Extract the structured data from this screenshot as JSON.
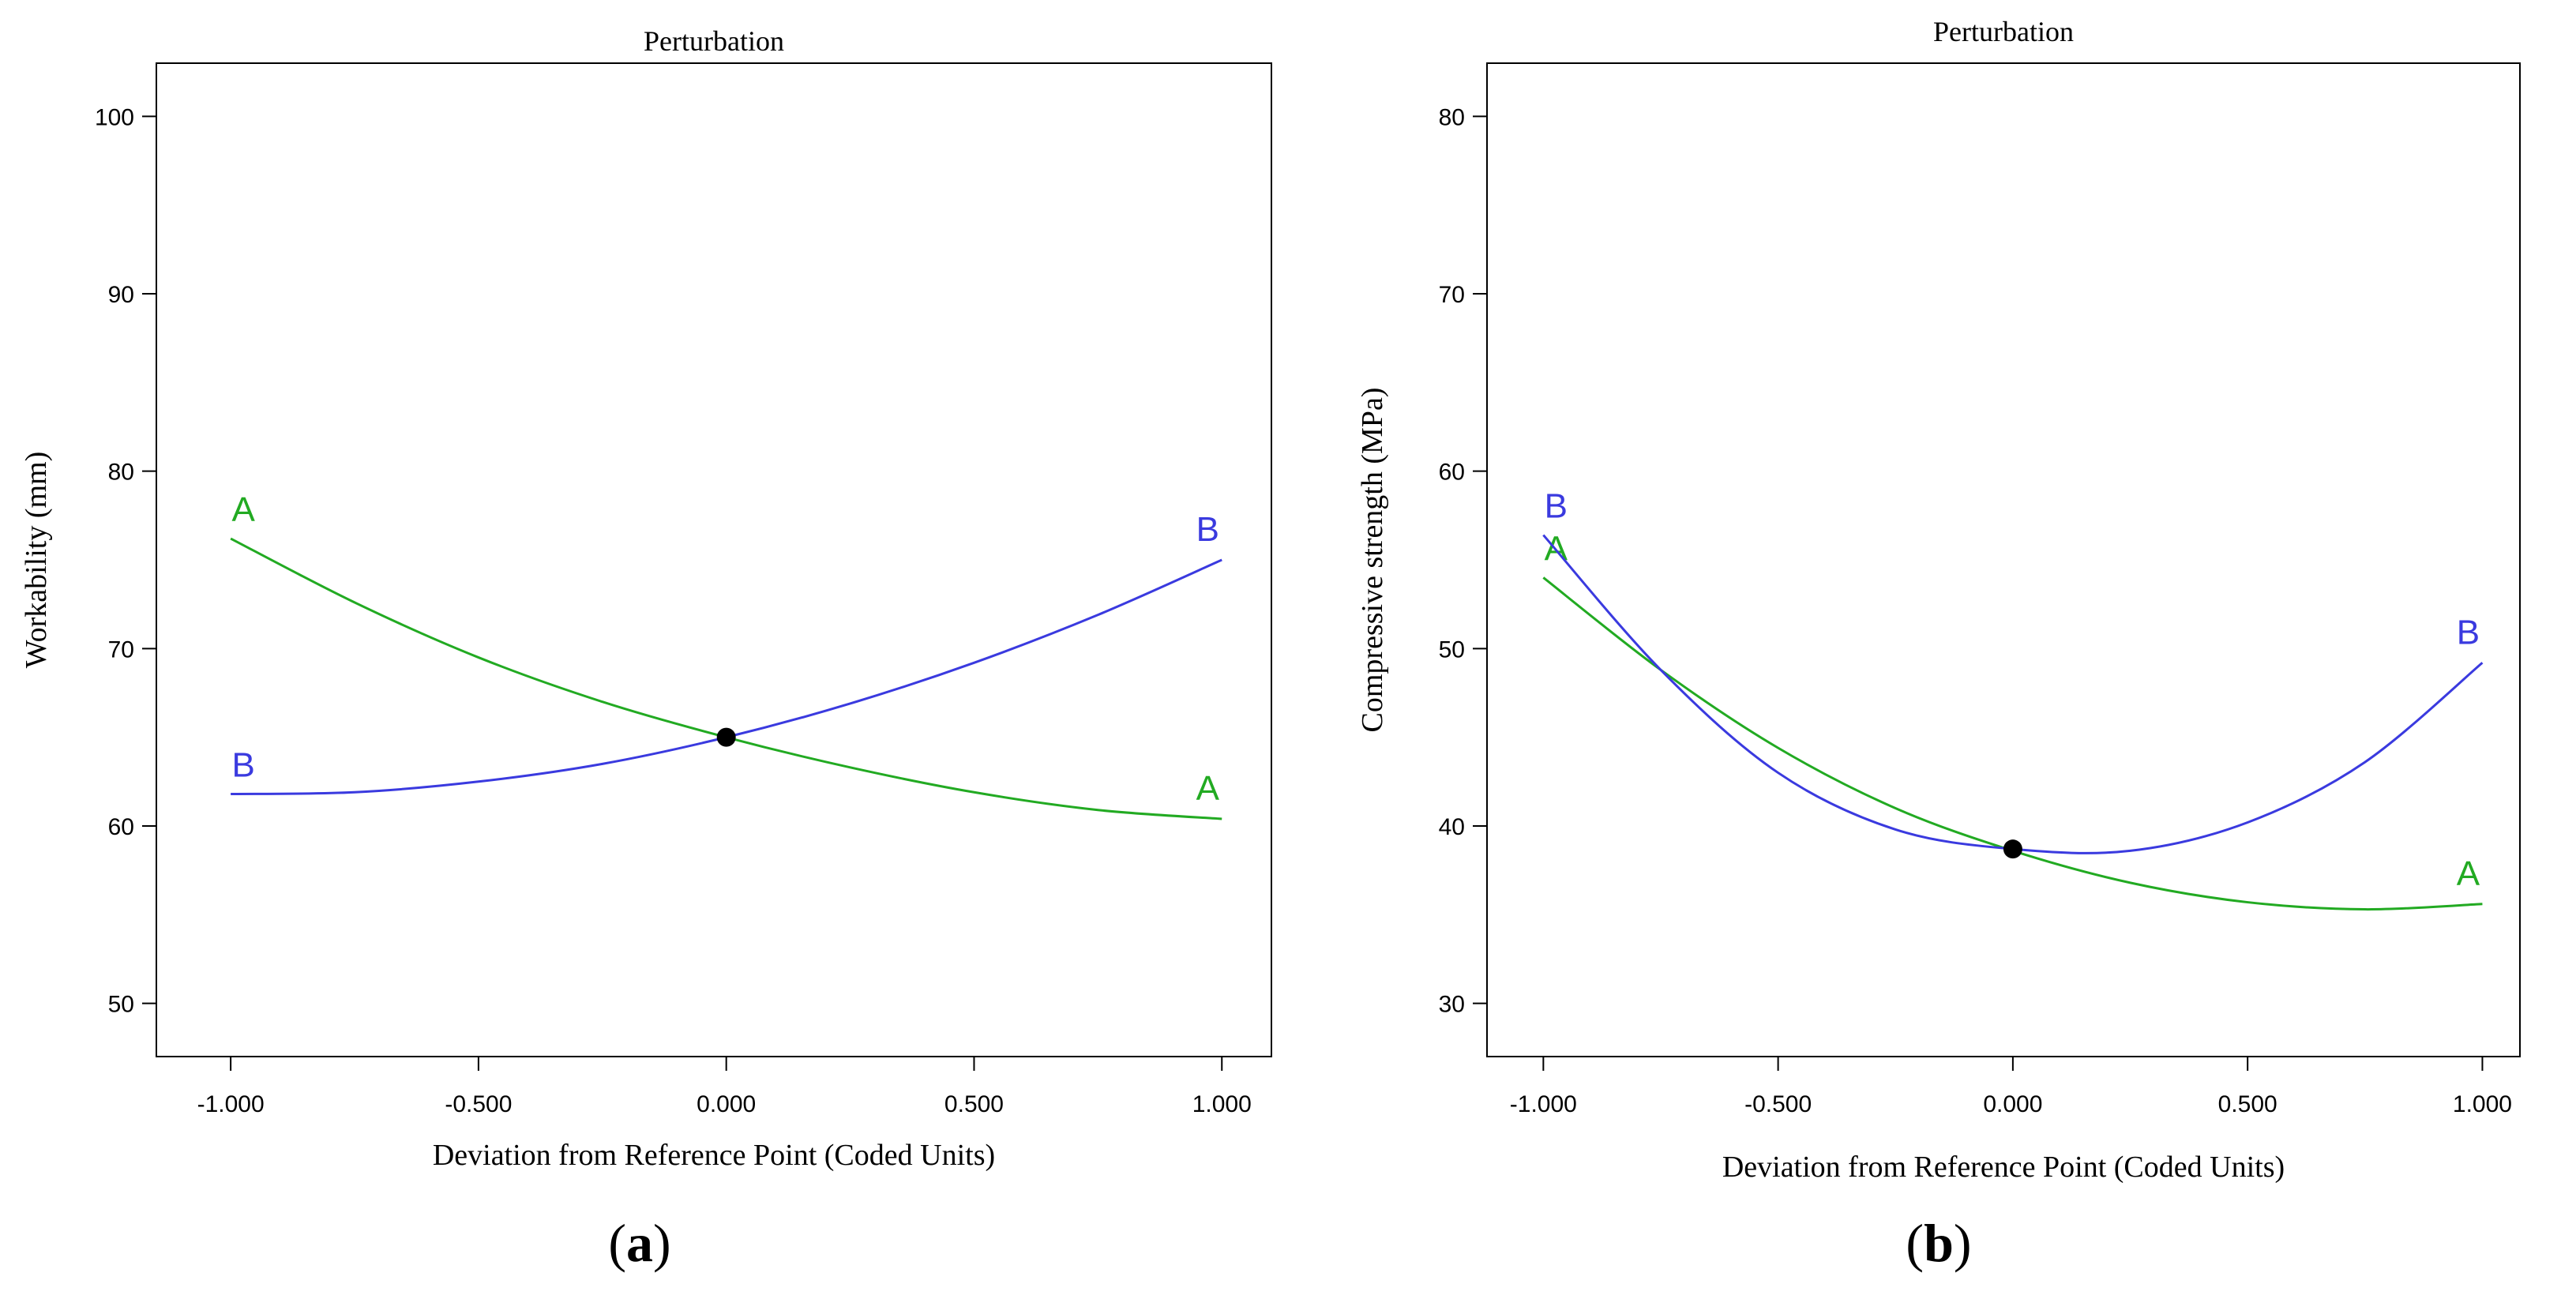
{
  "chart_data": [
    {
      "type": "line",
      "panel_label": "a",
      "title": "Perturbation",
      "xlabel": "Deviation from Reference Point (Coded Units)",
      "ylabel": "Workability (mm)",
      "xlim": [
        -1.15,
        1.1
      ],
      "ylim": [
        47,
        103
      ],
      "xticks": [
        -1.0,
        -0.5,
        0.0,
        0.5,
        1.0
      ],
      "xtick_labels": [
        "-1.000",
        "-0.500",
        "0.000",
        "0.500",
        "1.000"
      ],
      "yticks": [
        50,
        60,
        70,
        80,
        90,
        100
      ],
      "ytick_labels": [
        "50",
        "60",
        "70",
        "80",
        "90",
        "100"
      ],
      "reference_point": {
        "x": 0.0,
        "y": 65.0
      },
      "series": [
        {
          "name": "A",
          "color": "#22aa22",
          "x": [
            -1.0,
            -0.75,
            -0.5,
            -0.25,
            0.0,
            0.25,
            0.5,
            0.75,
            1.0
          ],
          "y": [
            76.2,
            72.6,
            69.5,
            67.0,
            65.0,
            63.3,
            61.9,
            60.9,
            60.4
          ]
        },
        {
          "name": "B",
          "color": "#3a3adf",
          "x": [
            -1.0,
            -0.75,
            -0.5,
            -0.25,
            0.0,
            0.25,
            0.5,
            0.75,
            1.0
          ],
          "y": [
            61.8,
            61.9,
            62.5,
            63.5,
            65.0,
            66.9,
            69.2,
            71.9,
            75.0
          ]
        }
      ]
    },
    {
      "type": "line",
      "panel_label": "b",
      "title": "Perturbation",
      "xlabel": "Deviation from Reference Point (Coded Units)",
      "ylabel": "Compressive  strength (MPa)",
      "xlim": [
        -1.12,
        1.08
      ],
      "ylim": [
        27,
        83
      ],
      "xticks": [
        -1.0,
        -0.5,
        0.0,
        0.5,
        1.0
      ],
      "xtick_labels": [
        "-1.000",
        "-0.500",
        "0.000",
        "0.500",
        "1.000"
      ],
      "yticks": [
        30,
        40,
        50,
        60,
        70,
        80
      ],
      "ytick_labels": [
        "30",
        "40",
        "50",
        "60",
        "70",
        "80"
      ],
      "reference_point": {
        "x": 0.0,
        "y": 38.7
      },
      "series": [
        {
          "name": "A",
          "color": "#22aa22",
          "x": [
            -1.0,
            -0.75,
            -0.5,
            -0.25,
            0.0,
            0.25,
            0.5,
            0.75,
            1.0
          ],
          "y": [
            54.0,
            48.8,
            44.4,
            41.0,
            38.6,
            36.8,
            35.7,
            35.3,
            35.6
          ]
        },
        {
          "name": "B",
          "color": "#3a3adf",
          "x": [
            -1.0,
            -0.75,
            -0.5,
            -0.25,
            0.0,
            0.25,
            0.5,
            0.75,
            1.0
          ],
          "y": [
            56.4,
            48.8,
            43.0,
            39.8,
            38.7,
            38.6,
            40.2,
            43.6,
            49.2
          ]
        }
      ]
    }
  ],
  "captions": {
    "a_open": "(",
    "a_letter": "a",
    "a_close": ")",
    "b_open": "(",
    "b_letter": "b",
    "b_close": ")"
  }
}
